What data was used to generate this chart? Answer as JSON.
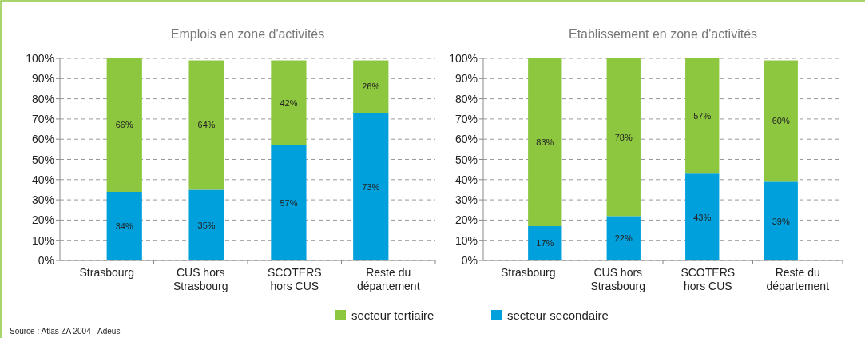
{
  "chart_data": [
    {
      "type": "bar",
      "title": "Emplois en zone d'activités",
      "categories": [
        "Strasbourg",
        "CUS hors Strasbourg",
        "SCOTERS hors CUS",
        "Reste du département"
      ],
      "stacked": true,
      "series": [
        {
          "name": "secteur secondaire",
          "color": "#00a0dc",
          "values": [
            34,
            35,
            57,
            73
          ],
          "value_labels": [
            "34%",
            "35%",
            "57%",
            "73%"
          ]
        },
        {
          "name": "secteur tertiaire",
          "color": "#8dc63f",
          "values": [
            66,
            64,
            42,
            26
          ],
          "value_labels": [
            "66%",
            "64%",
            "42%",
            "26%"
          ]
        }
      ],
      "ylim": [
        0,
        100
      ],
      "yticks": [
        {
          "value": 0,
          "label": "0%"
        },
        {
          "value": 10,
          "label": "10%"
        },
        {
          "value": 20,
          "label": "20%"
        },
        {
          "value": 30,
          "label": "30%"
        },
        {
          "value": 40,
          "label": "40%"
        },
        {
          "value": 50,
          "label": "50%"
        },
        {
          "value": 60,
          "label": "60%"
        },
        {
          "value": 70,
          "label": "70%"
        },
        {
          "value": 80,
          "label": "80%"
        },
        {
          "value": 90,
          "label": "90%"
        },
        {
          "value": 100,
          "label": "100%"
        }
      ],
      "grid": "y",
      "legend": "bottom",
      "annotations": [
        "Source : Atlas ZA 2004 - Adeus"
      ]
    },
    {
      "type": "bar",
      "title": "Etablissement en zone d'activités",
      "categories": [
        "Strasbourg",
        "CUS hors Strasbourg",
        "SCOTERS hors CUS",
        "Reste du département"
      ],
      "stacked": true,
      "series": [
        {
          "color": "#00a0dc",
          "values": [
            17,
            22,
            43,
            39
          ],
          "value_labels": [
            "17%",
            "22%",
            "43%",
            "39%"
          ]
        },
        {
          "color": "#8dc63f",
          "values": [
            83,
            78,
            57,
            60
          ],
          "value_labels": [
            "83%",
            "78%",
            "57%",
            "60%"
          ]
        }
      ],
      "ylim": [
        0,
        100
      ],
      "yticks": [
        {
          "value": 0,
          "label": "0%"
        },
        {
          "value": 10,
          "label": "10%"
        },
        {
          "value": 20,
          "label": "20%"
        },
        {
          "value": 30,
          "label": "30%"
        },
        {
          "value": 40,
          "label": "40%"
        },
        {
          "value": 50,
          "label": "50%"
        },
        {
          "value": 60,
          "label": "60%"
        },
        {
          "value": 70,
          "label": "70%"
        },
        {
          "value": 80,
          "label": "80%"
        },
        {
          "value": 90,
          "label": "90%"
        },
        {
          "value": 100,
          "label": "100%"
        }
      ],
      "grid": "y"
    }
  ]
}
